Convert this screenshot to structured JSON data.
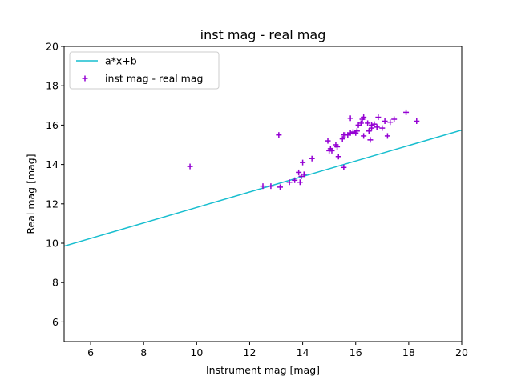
{
  "chart_data": {
    "type": "scatter",
    "title": "inst mag - real mag",
    "xlabel": "Instrument mag [mag]",
    "ylabel": "Real mag [mag]",
    "xlim": [
      5,
      20
    ],
    "ylim": [
      5,
      20
    ],
    "xticks": [
      6,
      8,
      10,
      12,
      14,
      16,
      18,
      20
    ],
    "yticks": [
      6,
      8,
      10,
      12,
      14,
      16,
      18,
      20
    ],
    "grid": false,
    "legend_position": "top-left",
    "series": [
      {
        "name": "a*x+b",
        "kind": "line",
        "color": "#17becf",
        "x": [
          5,
          20
        ],
        "y": [
          9.85,
          15.75
        ]
      },
      {
        "name": "inst mag - real mag",
        "kind": "scatter",
        "marker": "plus",
        "color": "#9400d3",
        "x": [
          9.75,
          12.5,
          12.8,
          13.1,
          13.15,
          13.5,
          13.7,
          13.85,
          13.9,
          13.95,
          14.0,
          14.05,
          14.35,
          14.95,
          15.0,
          15.05,
          15.1,
          15.25,
          15.3,
          15.35,
          15.5,
          15.55,
          15.55,
          15.6,
          15.7,
          15.8,
          15.8,
          15.9,
          16.0,
          16.05,
          16.1,
          16.2,
          16.25,
          16.3,
          16.3,
          16.45,
          16.5,
          16.55,
          16.6,
          16.6,
          16.7,
          16.8,
          16.85,
          17.0,
          17.1,
          17.2,
          17.3,
          17.45,
          17.9,
          18.3
        ],
        "y": [
          13.9,
          12.9,
          12.9,
          15.5,
          12.85,
          13.1,
          13.2,
          13.6,
          13.1,
          13.4,
          14.1,
          13.5,
          14.3,
          15.2,
          14.7,
          14.8,
          14.7,
          15.0,
          14.9,
          14.4,
          15.3,
          15.5,
          13.85,
          15.5,
          15.5,
          16.35,
          15.6,
          15.65,
          15.6,
          15.7,
          16.0,
          16.1,
          16.3,
          16.4,
          15.45,
          16.1,
          15.7,
          15.25,
          15.85,
          16.0,
          16.05,
          15.9,
          16.4,
          15.85,
          16.2,
          15.45,
          16.15,
          16.3,
          16.65,
          16.2
        ]
      }
    ]
  }
}
